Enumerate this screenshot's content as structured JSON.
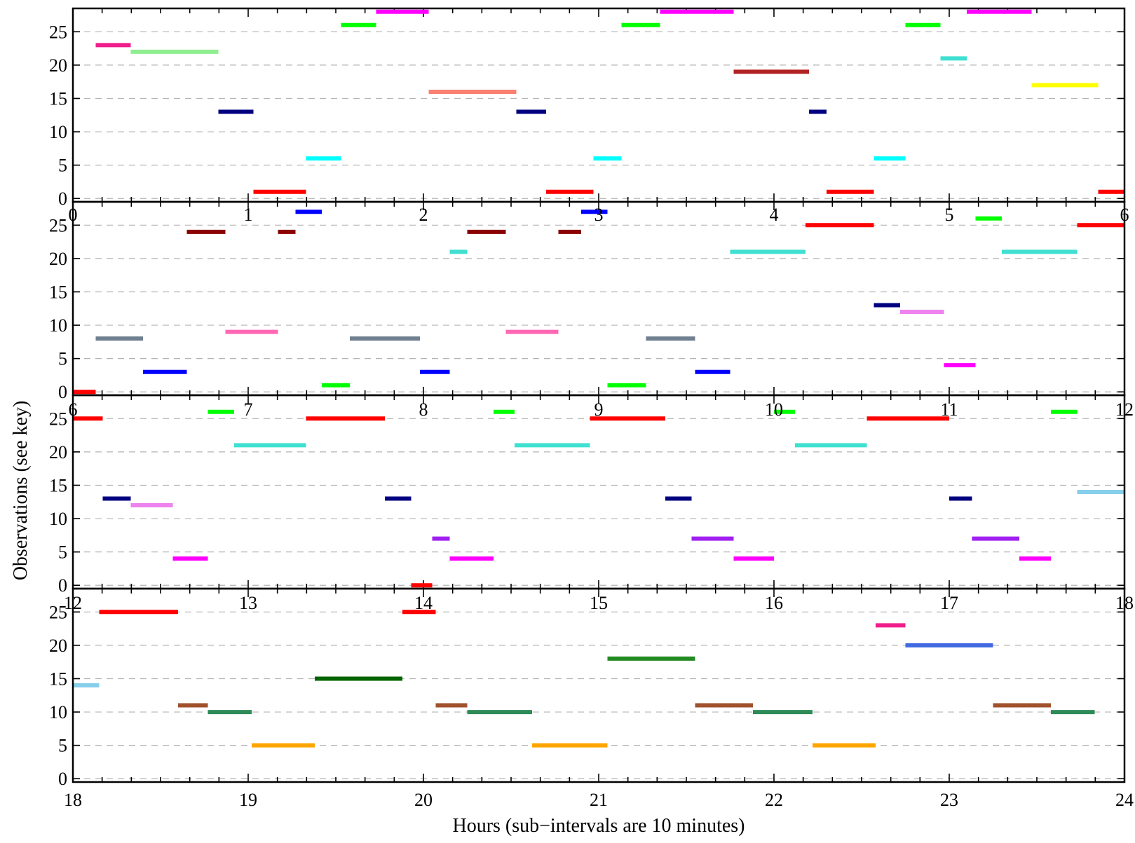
{
  "chart_data": {
    "type": "gantt",
    "xlabel": "Hours (sub−intervals are 10 minutes)",
    "ylabel": "Observations (see key)",
    "title": "",
    "grid": "horizontal dashed at every 5 observations",
    "yticks": [
      "0",
      "5",
      "10",
      "15",
      "20",
      "25"
    ],
    "ylim": [
      -0.5,
      28.5
    ],
    "panels": [
      {
        "xlim": [
          0,
          6
        ],
        "xticks": [
          "0",
          "1",
          "2",
          "3",
          "4",
          "5",
          "6"
        ],
        "segments": [
          {
            "obs": 23,
            "start": 0.13,
            "end": 0.33,
            "color": "#f01e8c"
          },
          {
            "obs": 22,
            "start": 0.33,
            "end": 0.83,
            "color": "#90ee90"
          },
          {
            "obs": 13,
            "start": 0.83,
            "end": 1.03,
            "color": "#000080"
          },
          {
            "obs": 1,
            "start": 1.03,
            "end": 1.33,
            "color": "#ff0000"
          },
          {
            "obs": 6,
            "start": 1.33,
            "end": 1.53,
            "color": "#00ffff"
          },
          {
            "obs": 26,
            "start": 1.53,
            "end": 1.73,
            "color": "#00ff00"
          },
          {
            "obs": 28,
            "start": 1.73,
            "end": 2.03,
            "color": "#ff00ff"
          },
          {
            "obs": 16,
            "start": 2.03,
            "end": 2.53,
            "color": "#fa8072"
          },
          {
            "obs": 13,
            "start": 2.53,
            "end": 2.7,
            "color": "#000080"
          },
          {
            "obs": 1,
            "start": 2.7,
            "end": 2.97,
            "color": "#ff0000"
          },
          {
            "obs": 6,
            "start": 2.97,
            "end": 3.13,
            "color": "#00ffff"
          },
          {
            "obs": 26,
            "start": 3.13,
            "end": 3.35,
            "color": "#00ff00"
          },
          {
            "obs": 28,
            "start": 3.35,
            "end": 3.77,
            "color": "#ff00ff"
          },
          {
            "obs": 19,
            "start": 3.77,
            "end": 4.2,
            "color": "#b22222"
          },
          {
            "obs": 13,
            "start": 4.2,
            "end": 4.3,
            "color": "#000080"
          },
          {
            "obs": 1,
            "start": 4.3,
            "end": 4.57,
            "color": "#ff0000"
          },
          {
            "obs": 6,
            "start": 4.57,
            "end": 4.75,
            "color": "#00ffff"
          },
          {
            "obs": 26,
            "start": 4.75,
            "end": 4.95,
            "color": "#00ff00"
          },
          {
            "obs": 21,
            "start": 4.95,
            "end": 5.1,
            "color": "#40e0d0"
          },
          {
            "obs": 28,
            "start": 5.1,
            "end": 5.47,
            "color": "#ff00ff"
          },
          {
            "obs": 17,
            "start": 5.47,
            "end": 5.85,
            "color": "#ffff00"
          },
          {
            "obs": 1,
            "start": 5.85,
            "end": 6.0,
            "color": "#ff0000"
          }
        ]
      },
      {
        "xlim": [
          6,
          12
        ],
        "xticks": [
          "6",
          "7",
          "8",
          "9",
          "10",
          "11",
          "12"
        ],
        "segments": [
          {
            "obs": 0,
            "start": 6.0,
            "end": 6.13,
            "color": "#ff0000"
          },
          {
            "obs": 8,
            "start": 6.13,
            "end": 6.4,
            "color": "#708090"
          },
          {
            "obs": 3,
            "start": 6.4,
            "end": 6.65,
            "color": "#0000ff"
          },
          {
            "obs": 24,
            "start": 6.65,
            "end": 6.87,
            "color": "#8b0000"
          },
          {
            "obs": 9,
            "start": 6.87,
            "end": 7.17,
            "color": "#ff69b4"
          },
          {
            "obs": 24,
            "start": 7.17,
            "end": 7.27,
            "color": "#8b0000"
          },
          {
            "obs": 27,
            "start": 7.27,
            "end": 7.42,
            "color": "#0000ff"
          },
          {
            "obs": 1,
            "start": 7.42,
            "end": 7.58,
            "color": "#00ff00"
          },
          {
            "obs": 8,
            "start": 7.58,
            "end": 7.98,
            "color": "#708090"
          },
          {
            "obs": 3,
            "start": 7.98,
            "end": 8.15,
            "color": "#0000ff"
          },
          {
            "obs": 21,
            "start": 8.15,
            "end": 8.25,
            "color": "#40e0d0"
          },
          {
            "obs": 24,
            "start": 8.25,
            "end": 8.47,
            "color": "#8b0000"
          },
          {
            "obs": 9,
            "start": 8.47,
            "end": 8.77,
            "color": "#ff69b4"
          },
          {
            "obs": 24,
            "start": 8.77,
            "end": 8.9,
            "color": "#8b0000"
          },
          {
            "obs": 27,
            "start": 8.9,
            "end": 9.05,
            "color": "#0000ff"
          },
          {
            "obs": 1,
            "start": 9.05,
            "end": 9.27,
            "color": "#00ff00"
          },
          {
            "obs": 8,
            "start": 9.27,
            "end": 9.55,
            "color": "#708090"
          },
          {
            "obs": 3,
            "start": 9.55,
            "end": 9.75,
            "color": "#0000ff"
          },
          {
            "obs": 21,
            "start": 9.75,
            "end": 10.18,
            "color": "#40e0d0"
          },
          {
            "obs": 25,
            "start": 10.18,
            "end": 10.57,
            "color": "#ff0000"
          },
          {
            "obs": 13,
            "start": 10.57,
            "end": 10.72,
            "color": "#000080"
          },
          {
            "obs": 12,
            "start": 10.72,
            "end": 10.97,
            "color": "#ee82ee"
          },
          {
            "obs": 4,
            "start": 10.97,
            "end": 11.15,
            "color": "#ff00ff"
          },
          {
            "obs": 26,
            "start": 11.15,
            "end": 11.3,
            "color": "#00ff00"
          },
          {
            "obs": 21,
            "start": 11.3,
            "end": 11.73,
            "color": "#40e0d0"
          },
          {
            "obs": 25,
            "start": 11.73,
            "end": 12.0,
            "color": "#ff0000"
          }
        ]
      },
      {
        "xlim": [
          12,
          18
        ],
        "xticks": [
          "6",
          "7",
          "8",
          "9",
          "10",
          "11",
          "12"
        ],
        "segments": [
          {
            "obs": 25,
            "start": 12.0,
            "end": 12.17,
            "color": "#ff0000"
          },
          {
            "obs": 13,
            "start": 12.17,
            "end": 12.33,
            "color": "#000080"
          },
          {
            "obs": 12,
            "start": 12.33,
            "end": 12.57,
            "color": "#ee82ee"
          },
          {
            "obs": 4,
            "start": 12.57,
            "end": 12.77,
            "color": "#ff00ff"
          },
          {
            "obs": 26,
            "start": 12.77,
            "end": 12.92,
            "color": "#00ff00"
          },
          {
            "obs": 21,
            "start": 12.92,
            "end": 13.33,
            "color": "#40e0d0"
          },
          {
            "obs": 25,
            "start": 13.33,
            "end": 13.78,
            "color": "#ff0000"
          },
          {
            "obs": 13,
            "start": 13.78,
            "end": 13.93,
            "color": "#000080"
          },
          {
            "obs": 0,
            "start": 13.93,
            "end": 14.05,
            "color": "#ff0000"
          },
          {
            "obs": 7,
            "start": 14.05,
            "end": 14.15,
            "color": "#a020f0"
          },
          {
            "obs": 4,
            "start": 14.15,
            "end": 14.4,
            "color": "#ff00ff"
          },
          {
            "obs": 26,
            "start": 14.4,
            "end": 14.52,
            "color": "#00ff00"
          },
          {
            "obs": 21,
            "start": 14.52,
            "end": 14.95,
            "color": "#40e0d0"
          },
          {
            "obs": 25,
            "start": 14.95,
            "end": 15.38,
            "color": "#ff0000"
          },
          {
            "obs": 13,
            "start": 15.38,
            "end": 15.53,
            "color": "#000080"
          },
          {
            "obs": 7,
            "start": 15.53,
            "end": 15.77,
            "color": "#a020f0"
          },
          {
            "obs": 4,
            "start": 15.77,
            "end": 16.0,
            "color": "#ff00ff"
          },
          {
            "obs": 26,
            "start": 16.0,
            "end": 16.12,
            "color": "#00ff00"
          },
          {
            "obs": 21,
            "start": 16.12,
            "end": 16.53,
            "color": "#40e0d0"
          },
          {
            "obs": 25,
            "start": 16.53,
            "end": 17.0,
            "color": "#ff0000"
          },
          {
            "obs": 13,
            "start": 17.0,
            "end": 17.13,
            "color": "#000080"
          },
          {
            "obs": 7,
            "start": 17.13,
            "end": 17.4,
            "color": "#a020f0"
          },
          {
            "obs": 4,
            "start": 17.4,
            "end": 17.58,
            "color": "#ff00ff"
          },
          {
            "obs": 26,
            "start": 17.58,
            "end": 17.73,
            "color": "#00ff00"
          },
          {
            "obs": 14,
            "start": 17.73,
            "end": 18.0,
            "color": "#87ceeb"
          }
        ]
      },
      {
        "xlim": [
          18,
          24
        ],
        "xticks_top": [
          "12",
          "13",
          "14",
          "15",
          "16",
          "17",
          "18"
        ],
        "xticks": [
          "18",
          "19",
          "20",
          "21",
          "22",
          "23",
          "24"
        ],
        "segments": [
          {
            "obs": 14,
            "start": 18.0,
            "end": 18.15,
            "color": "#87ceeb"
          },
          {
            "obs": 25,
            "start": 18.15,
            "end": 18.6,
            "color": "#ff0000"
          },
          {
            "obs": 11,
            "start": 18.6,
            "end": 18.77,
            "color": "#a0522d"
          },
          {
            "obs": 10,
            "start": 18.77,
            "end": 19.02,
            "color": "#2e8b57"
          },
          {
            "obs": 5,
            "start": 19.02,
            "end": 19.38,
            "color": "#ffa500"
          },
          {
            "obs": 15,
            "start": 19.38,
            "end": 19.88,
            "color": "#006400"
          },
          {
            "obs": 25,
            "start": 19.88,
            "end": 20.07,
            "color": "#ff0000"
          },
          {
            "obs": 11,
            "start": 20.07,
            "end": 20.25,
            "color": "#a0522d"
          },
          {
            "obs": 10,
            "start": 20.25,
            "end": 20.62,
            "color": "#2e8b57"
          },
          {
            "obs": 5,
            "start": 20.62,
            "end": 21.05,
            "color": "#ffa500"
          },
          {
            "obs": 18,
            "start": 21.05,
            "end": 21.55,
            "color": "#228b22"
          },
          {
            "obs": 11,
            "start": 21.55,
            "end": 21.88,
            "color": "#a0522d"
          },
          {
            "obs": 10,
            "start": 21.88,
            "end": 22.22,
            "color": "#2e8b57"
          },
          {
            "obs": 5,
            "start": 22.22,
            "end": 22.58,
            "color": "#ffa500"
          },
          {
            "obs": 23,
            "start": 22.58,
            "end": 22.75,
            "color": "#f01e8c"
          },
          {
            "obs": 20,
            "start": 22.75,
            "end": 23.25,
            "color": "#4169e1"
          },
          {
            "obs": 11,
            "start": 23.25,
            "end": 23.58,
            "color": "#a0522d"
          },
          {
            "obs": 10,
            "start": 23.58,
            "end": 23.83,
            "color": "#2e8b57"
          }
        ]
      }
    ]
  }
}
